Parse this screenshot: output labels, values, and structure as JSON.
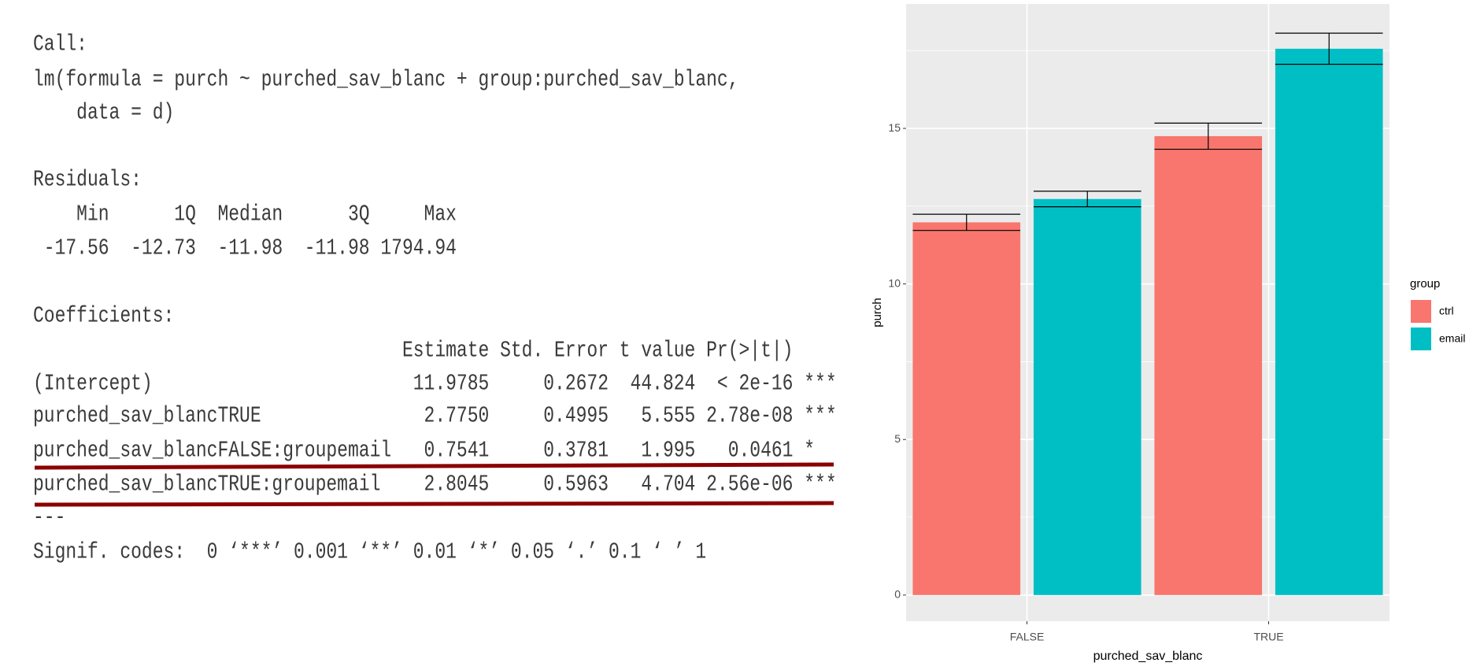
{
  "console": {
    "lines": [
      "Call:",
      "lm(formula = purch ~ purched_sav_blanc + group:purched_sav_blanc,",
      "    data = d)",
      "Residuals:",
      "    Min      1Q  Median      3Q     Max ",
      " -17.56  -12.73  -11.98  -11.98 1794.94 ",
      "Coefficients:",
      "                                  Estimate Std. Error t value Pr(>|t|)    ",
      "(Intercept)                        11.9785     0.2672  44.824  < 2e-16 ***",
      "purched_sav_blancTRUE               2.7750     0.4995   5.555 2.78e-08 ***",
      "purched_sav_blancFALSE:groupemail   0.7541     0.3781   1.995   0.0461 *  ",
      "purched_sav_blancTRUE:groupemail    2.8045     0.5963   4.704 2.56e-06 ***",
      "---",
      "Signif. codes:  0 ‘***’ 0.001 ‘**’ 0.01 ‘*’ 0.05 ‘.’ 0.1 ‘ ’ 1"
    ]
  },
  "chart_data": {
    "type": "bar",
    "categories": [
      "FALSE",
      "TRUE"
    ],
    "series": [
      {
        "name": "ctrl",
        "color": "#F8766D",
        "values": [
          11.98,
          14.75
        ],
        "errors": [
          0.26,
          0.42
        ]
      },
      {
        "name": "email",
        "color": "#00BFC4",
        "values": [
          12.73,
          17.56
        ],
        "errors": [
          0.25,
          0.5
        ]
      }
    ],
    "xlabel": "purched_sav_blanc",
    "ylabel": "purch",
    "legend_title": "group",
    "ylim": [
      -0.84,
      19.0
    ],
    "yticks": [
      0,
      5,
      10,
      15
    ],
    "grid": true,
    "legend": "right"
  }
}
